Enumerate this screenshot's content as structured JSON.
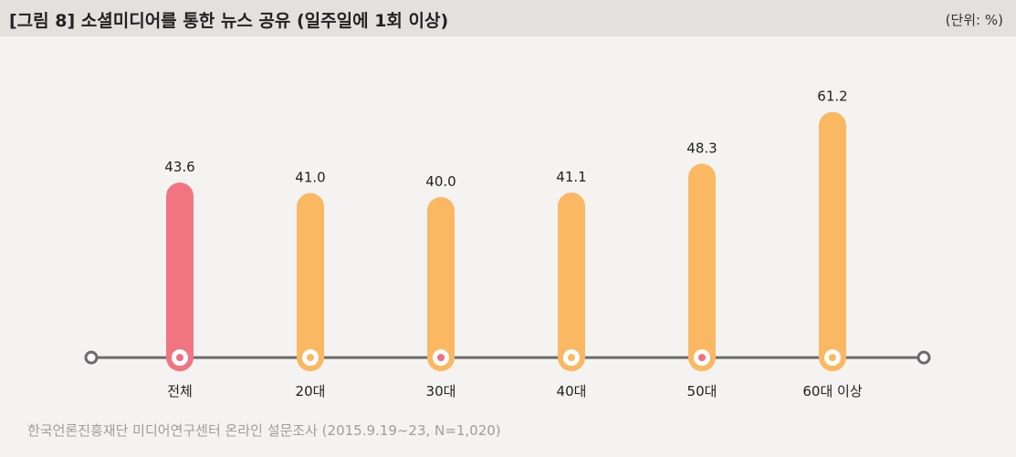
{
  "header": {
    "title": "[그림 8]  소셜미디어를 통한 뉴스 공유 (일주일에 1회 이상)",
    "unit": "(단위: %)"
  },
  "colors": {
    "header_bg": "#e3e1de",
    "panel_bg": "#f4f3f1",
    "highlight_bar": "#f07580",
    "bar": "#fbb862",
    "axis": "#6b6b6b",
    "dot_orange": "#fbb862",
    "dot_pink": "#ef6f83"
  },
  "chart_data": {
    "type": "bar",
    "title": "[그림 8]  소셜미디어를 통한 뉴스 공유 (일주일에 1회 이상)",
    "unit": "(단위: %)",
    "categories": [
      "전체",
      "20대",
      "30대",
      "40대",
      "50대",
      "60대 이상"
    ],
    "values": [
      43.6,
      41.0,
      40.0,
      41.1,
      48.3,
      61.2
    ],
    "value_labels": [
      "43.6",
      "41.0",
      "40.0",
      "41.1",
      "48.3",
      "61.2"
    ],
    "highlight_index": 0,
    "center_dot_colors": [
      "#ef6f83",
      "#fbb862",
      "#ef6f83",
      "#fbb862",
      "#ef6f83",
      "#fbb862"
    ],
    "ylim": [
      0,
      70
    ],
    "grid": false,
    "xlabel": "",
    "ylabel": ""
  },
  "source": "한국언론진흥재단 미디어연구센터 온라인 설문조사 (2015.9.19~23, N=1,020)"
}
